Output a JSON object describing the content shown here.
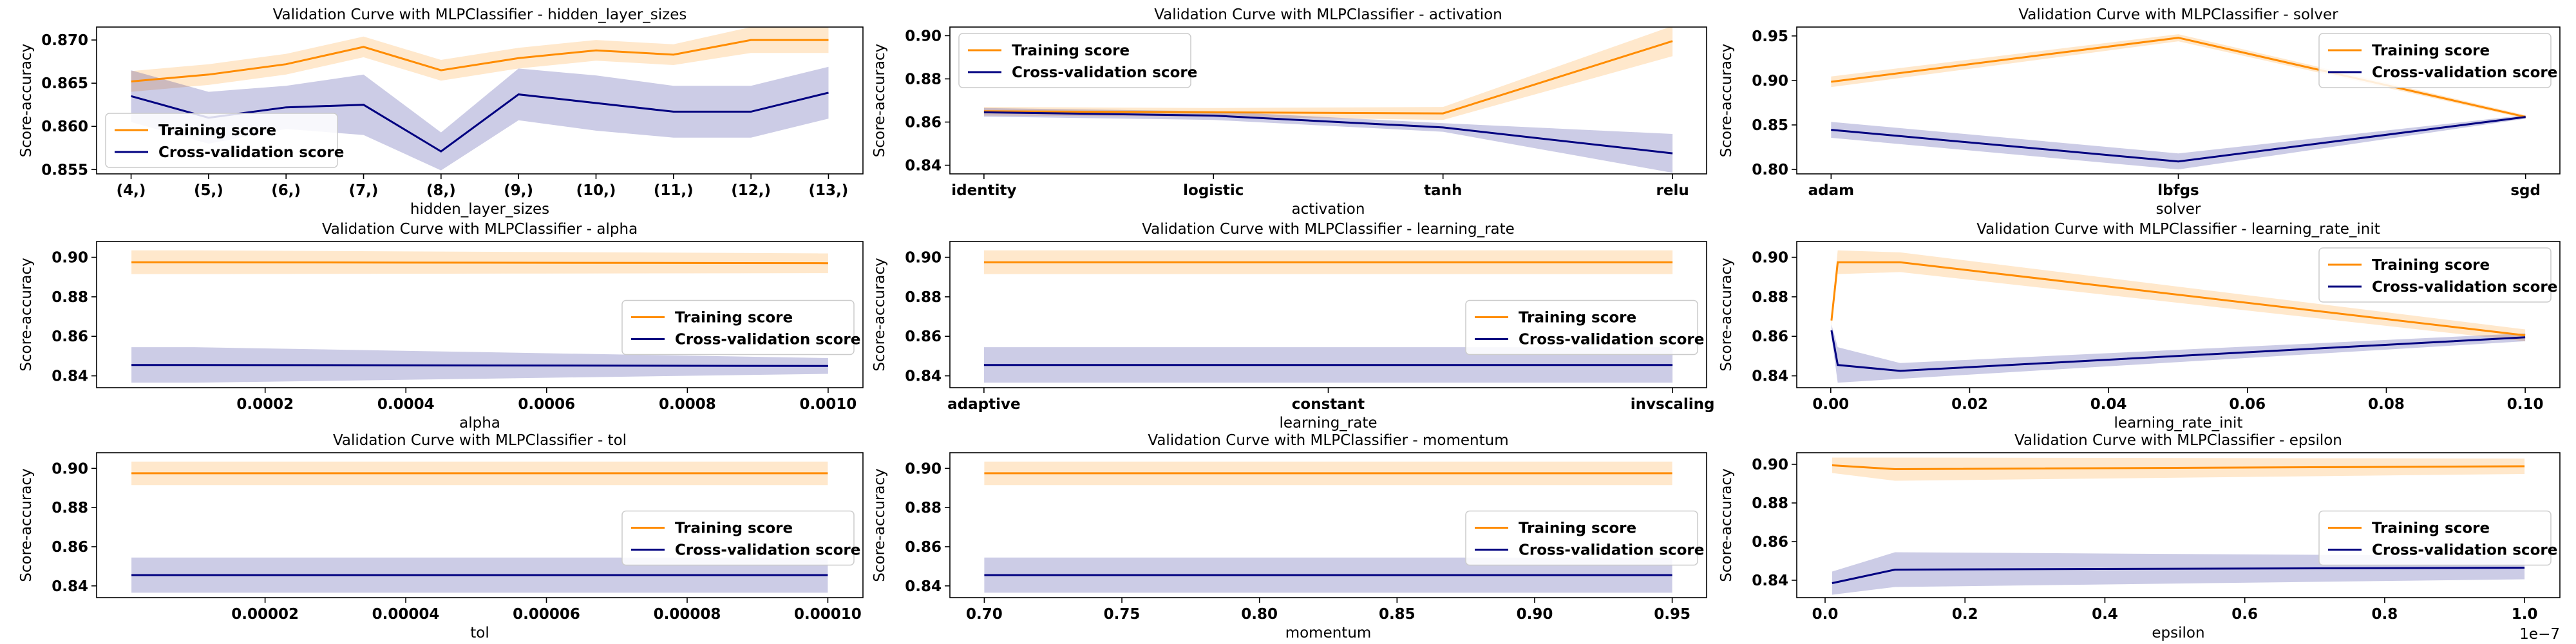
{
  "colors": {
    "train": "#ff8c00",
    "cv": "#000080",
    "train_fill": "#ff8c00",
    "cv_fill": "#000080"
  },
  "legend_labels": {
    "train": "Training score",
    "cv": "Cross-validation score"
  },
  "chart_data": [
    {
      "type": "line",
      "title": "Validation Curve with MLPClassifier - hidden_layer_sizes",
      "xlabel": "hidden_layer_sizes",
      "ylabel": "Score-accuracy",
      "x_kind": "category",
      "categories": [
        "(4,)",
        "(5,)",
        "(6,)",
        "(7,)",
        "(8,)",
        "(9,)",
        "(10,)",
        "(11,)",
        "(12,)",
        "(13,)"
      ],
      "ylim": [
        0.8545,
        0.8715
      ],
      "yticks": [
        0.855,
        0.86,
        0.865,
        0.87
      ],
      "ytick_labels": [
        "0.855",
        "0.860",
        "0.865",
        "0.870"
      ],
      "legend": "lower-left",
      "series": [
        {
          "name": "Training score",
          "values": [
            0.8652,
            0.866,
            0.8672,
            0.8692,
            0.8665,
            0.8679,
            0.8688,
            0.8683,
            0.87,
            0.87
          ],
          "band": [
            0.0012,
            0.0012,
            0.0012,
            0.0012,
            0.0012,
            0.0012,
            0.0012,
            0.0012,
            0.0015,
            0.0015
          ]
        },
        {
          "name": "Cross-validation score",
          "values": [
            0.8635,
            0.861,
            0.8622,
            0.8625,
            0.8571,
            0.8637,
            0.8627,
            0.8617,
            0.8617,
            0.8639
          ],
          "band": [
            0.003,
            0.003,
            0.0025,
            0.0035,
            0.0022,
            0.003,
            0.0032,
            0.003,
            0.003,
            0.003
          ]
        }
      ]
    },
    {
      "type": "line",
      "title": "Validation Curve with MLPClassifier - activation",
      "xlabel": "activation",
      "ylabel": "Score-accuracy",
      "x_kind": "category",
      "categories": [
        "identity",
        "logistic",
        "tanh",
        "relu"
      ],
      "ylim": [
        0.836,
        0.904
      ],
      "yticks": [
        0.84,
        0.86,
        0.88,
        0.9
      ],
      "ytick_labels": [
        "0.84",
        "0.86",
        "0.88",
        "0.90"
      ],
      "legend": "top-left",
      "series": [
        {
          "name": "Training score",
          "values": [
            0.865,
            0.8645,
            0.864,
            0.8975
          ],
          "band": [
            0.002,
            0.002,
            0.003,
            0.007
          ]
        },
        {
          "name": "Cross-validation score",
          "values": [
            0.8645,
            0.863,
            0.8575,
            0.8455
          ],
          "band": [
            0.002,
            0.002,
            0.002,
            0.009
          ]
        }
      ]
    },
    {
      "type": "line",
      "title": "Validation Curve with MLPClassifier - solver",
      "xlabel": "solver",
      "ylabel": "Score-accuracy",
      "x_kind": "category",
      "categories": [
        "adam",
        "lbfgs",
        "sgd"
      ],
      "ylim": [
        0.795,
        0.96
      ],
      "yticks": [
        0.8,
        0.85,
        0.9,
        0.95
      ],
      "ytick_labels": [
        "0.80",
        "0.85",
        "0.90",
        "0.95"
      ],
      "legend": "top-right",
      "series": [
        {
          "name": "Training score",
          "values": [
            0.8985,
            0.948,
            0.859
          ],
          "band": [
            0.006,
            0.004,
            0.002
          ]
        },
        {
          "name": "Cross-validation score",
          "values": [
            0.8445,
            0.809,
            0.859
          ],
          "band": [
            0.009,
            0.009,
            0.002
          ]
        }
      ]
    },
    {
      "type": "line",
      "title": "Validation Curve with MLPClassifier - alpha",
      "xlabel": "alpha",
      "ylabel": "Score-accuracy",
      "x_kind": "numeric",
      "x": [
        1e-05,
        0.0001,
        0.001
      ],
      "xlim": [
        -3.95e-05,
        0.0010495
      ],
      "xticks": [
        0.0002,
        0.0004,
        0.0006,
        0.0008,
        0.001
      ],
      "xtick_labels": [
        "0.0002",
        "0.0004",
        "0.0006",
        "0.0008",
        "0.0010"
      ],
      "ylim": [
        0.834,
        0.908
      ],
      "yticks": [
        0.84,
        0.86,
        0.88,
        0.9
      ],
      "ytick_labels": [
        "0.84",
        "0.86",
        "0.88",
        "0.90"
      ],
      "legend": "center-right",
      "series": [
        {
          "name": "Training score",
          "values": [
            0.8975,
            0.8975,
            0.897
          ],
          "band": [
            0.006,
            0.006,
            0.005
          ]
        },
        {
          "name": "Cross-validation score",
          "values": [
            0.8455,
            0.8455,
            0.845
          ],
          "band": [
            0.009,
            0.009,
            0.004
          ]
        }
      ]
    },
    {
      "type": "line",
      "title": "Validation Curve with MLPClassifier - learning_rate",
      "xlabel": "learning_rate",
      "ylabel": "Score-accuracy",
      "x_kind": "category",
      "categories": [
        "adaptive",
        "constant",
        "invscaling"
      ],
      "ylim": [
        0.834,
        0.908
      ],
      "yticks": [
        0.84,
        0.86,
        0.88,
        0.9
      ],
      "ytick_labels": [
        "0.84",
        "0.86",
        "0.88",
        "0.90"
      ],
      "legend": "center-right",
      "series": [
        {
          "name": "Training score",
          "values": [
            0.8975,
            0.8975,
            0.8975
          ],
          "band": [
            0.006,
            0.006,
            0.006
          ]
        },
        {
          "name": "Cross-validation score",
          "values": [
            0.8455,
            0.8455,
            0.8455
          ],
          "band": [
            0.009,
            0.009,
            0.009
          ]
        }
      ]
    },
    {
      "type": "line",
      "title": "Validation Curve with MLPClassifier - learning_rate_init",
      "xlabel": "learning_rate_init",
      "ylabel": "Score-accuracy",
      "x_kind": "numeric",
      "x": [
        0.0001,
        0.001,
        0.01,
        0.1
      ],
      "xlim": [
        -0.004895,
        0.104995
      ],
      "xticks": [
        0.0,
        0.02,
        0.04,
        0.06,
        0.08,
        0.1
      ],
      "xtick_labels": [
        "0.00",
        "0.02",
        "0.04",
        "0.06",
        "0.08",
        "0.10"
      ],
      "ylim": [
        0.834,
        0.908
      ],
      "yticks": [
        0.84,
        0.86,
        0.88,
        0.9
      ],
      "ytick_labels": [
        "0.84",
        "0.86",
        "0.88",
        "0.90"
      ],
      "legend": "top-right",
      "series": [
        {
          "name": "Training score",
          "values": [
            0.868,
            0.8975,
            0.8975,
            0.8605
          ],
          "band": [
            0.003,
            0.006,
            0.005,
            0.003
          ]
        },
        {
          "name": "Cross-validation score",
          "values": [
            0.863,
            0.8455,
            0.8425,
            0.8595
          ],
          "band": [
            0.003,
            0.009,
            0.004,
            0.002
          ]
        }
      ]
    },
    {
      "type": "line",
      "title": "Validation Curve with MLPClassifier - tol",
      "xlabel": "tol",
      "ylabel": "Score-accuracy",
      "x_kind": "numeric",
      "x": [
        1e-06,
        1e-05,
        0.0001
      ],
      "xlim": [
        -3.95e-06,
        0.000104995
      ],
      "xticks": [
        2e-05,
        4e-05,
        6e-05,
        8e-05,
        0.0001
      ],
      "xtick_labels": [
        "0.00002",
        "0.00004",
        "0.00006",
        "0.00008",
        "0.00010"
      ],
      "ylim": [
        0.834,
        0.908
      ],
      "yticks": [
        0.84,
        0.86,
        0.88,
        0.9
      ],
      "ytick_labels": [
        "0.84",
        "0.86",
        "0.88",
        "0.90"
      ],
      "legend": "center-right",
      "series": [
        {
          "name": "Training score",
          "values": [
            0.8975,
            0.8975,
            0.8975
          ],
          "band": [
            0.006,
            0.006,
            0.006
          ]
        },
        {
          "name": "Cross-validation score",
          "values": [
            0.8455,
            0.8455,
            0.8455
          ],
          "band": [
            0.009,
            0.009,
            0.009
          ]
        }
      ]
    },
    {
      "type": "line",
      "title": "Validation Curve with MLPClassifier - momentum",
      "xlabel": "momentum",
      "ylabel": "Score-accuracy",
      "x_kind": "numeric",
      "x": [
        0.7,
        0.8,
        0.9,
        0.95
      ],
      "xlim": [
        0.6875,
        0.9625
      ],
      "xticks": [
        0.7,
        0.75,
        0.8,
        0.85,
        0.9,
        0.95
      ],
      "xtick_labels": [
        "0.70",
        "0.75",
        "0.80",
        "0.85",
        "0.90",
        "0.95"
      ],
      "ylim": [
        0.834,
        0.908
      ],
      "yticks": [
        0.84,
        0.86,
        0.88,
        0.9
      ],
      "ytick_labels": [
        "0.84",
        "0.86",
        "0.88",
        "0.90"
      ],
      "legend": "center-right",
      "series": [
        {
          "name": "Training score",
          "values": [
            0.8975,
            0.8975,
            0.8975,
            0.8975
          ],
          "band": [
            0.006,
            0.006,
            0.006,
            0.006
          ]
        },
        {
          "name": "Cross-validation score",
          "values": [
            0.8455,
            0.8455,
            0.8455,
            0.8455
          ],
          "band": [
            0.009,
            0.009,
            0.009,
            0.009
          ]
        }
      ]
    },
    {
      "type": "line",
      "title": "Validation Curve with MLPClassifier - epsilon",
      "xlabel": "epsilon",
      "ylabel": "Score-accuracy",
      "x_kind": "numeric",
      "x": [
        1e-09,
        1e-08,
        1e-07
      ],
      "xlim": [
        -4.05e-09,
        1.0505e-07
      ],
      "xticks": [
        0,
        2e-08,
        4e-08,
        6e-08,
        8e-08,
        1e-07
      ],
      "xtick_labels": [
        "0.0",
        "0.2",
        "0.4",
        "0.6",
        "0.8",
        "1.0"
      ],
      "x_offset_label": "1e−7",
      "ylim": [
        0.831,
        0.906
      ],
      "yticks": [
        0.84,
        0.86,
        0.88,
        0.9
      ],
      "ytick_labels": [
        "0.84",
        "0.86",
        "0.88",
        "0.90"
      ],
      "legend": "center-right",
      "series": [
        {
          "name": "Training score",
          "values": [
            0.8995,
            0.8975,
            0.899
          ],
          "band": [
            0.004,
            0.006,
            0.004
          ]
        },
        {
          "name": "Cross-validation score",
          "values": [
            0.8385,
            0.8455,
            0.8465
          ],
          "band": [
            0.006,
            0.009,
            0.006
          ]
        }
      ]
    }
  ]
}
